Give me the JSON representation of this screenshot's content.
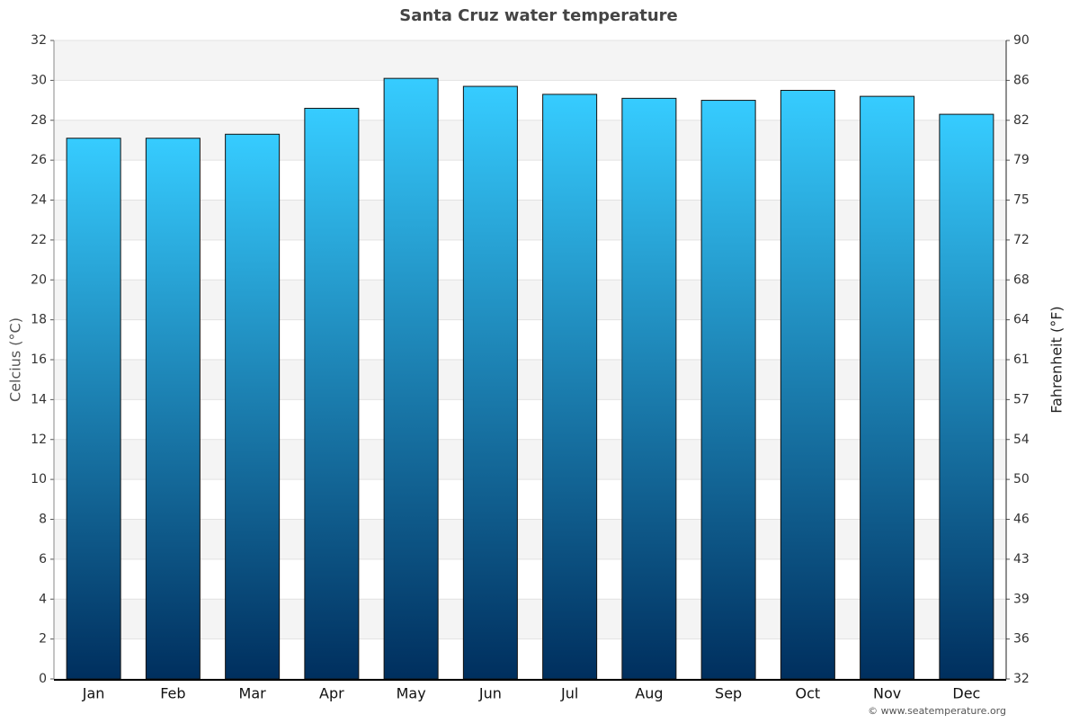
{
  "chart_data": {
    "type": "bar",
    "title": "Santa Cruz water temperature",
    "y_label": "Celcius (°C)",
    "y2_label": "Fahrenheit (°F)",
    "categories": [
      "Jan",
      "Feb",
      "Mar",
      "Apr",
      "May",
      "Jun",
      "Jul",
      "Aug",
      "Sep",
      "Oct",
      "Nov",
      "Dec"
    ],
    "values": [
      27.1,
      27.1,
      27.3,
      28.6,
      30.1,
      29.7,
      29.3,
      29.1,
      29.0,
      29.5,
      29.2,
      28.3
    ],
    "gradient": [
      "#36ccff",
      "#002f5e"
    ],
    "ylim": [
      0,
      32
    ],
    "yticks": [
      0,
      2,
      4,
      6,
      8,
      10,
      12,
      14,
      16,
      18,
      20,
      22,
      24,
      26,
      28,
      30,
      32
    ],
    "y2lim": [
      32,
      89.6
    ],
    "y2ticks": [
      32,
      {
        "value": 35.6,
        "label": "36"
      },
      {
        "value": 39.2,
        "label": "39"
      },
      {
        "value": 42.8,
        "label": "43"
      },
      {
        "value": 46.4,
        "label": "46"
      },
      50,
      {
        "value": 53.6,
        "label": "54"
      },
      {
        "value": 57.2,
        "label": "57"
      },
      {
        "value": 60.8,
        "label": "61"
      },
      {
        "value": 64.4,
        "label": "64"
      },
      68,
      {
        "value": 71.6,
        "label": "72"
      },
      {
        "value": 75.2,
        "label": "75"
      },
      {
        "value": 78.8,
        "label": "79"
      },
      {
        "value": 82.4,
        "label": "82"
      },
      86,
      {
        "value": 89.6,
        "label": "90"
      }
    ],
    "grid": true,
    "banded_background": true,
    "credit": "© www.seatemperature.org"
  }
}
